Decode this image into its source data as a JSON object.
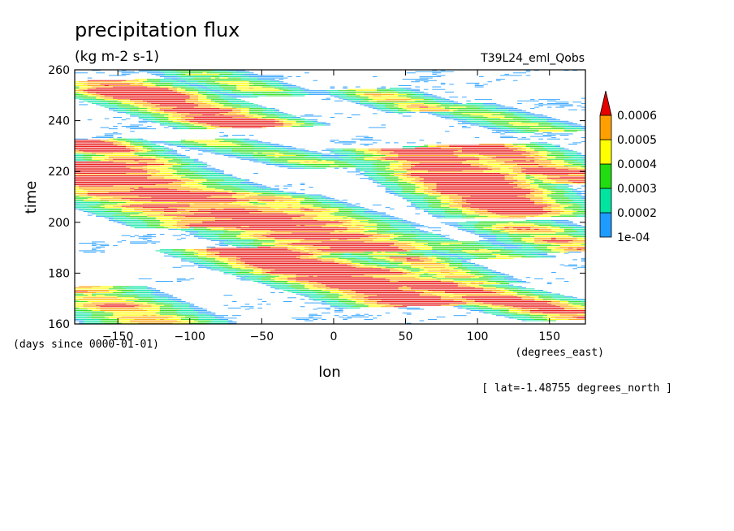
{
  "header": {
    "title": "precipitation flux",
    "units": "(kg m-2 s-1)",
    "experiment": "T39L24_eml_Qobs"
  },
  "footer": {
    "xunit": "(degrees_east)",
    "yunit": "(days since 0000-01-01)",
    "lat_note": "[ lat=-1.48755 degrees_north ]"
  },
  "chart_data": {
    "type": "heatmap",
    "title": "precipitation flux",
    "units": "(kg m-2 s-1)",
    "xlabel": "lon",
    "ylabel": "time",
    "xunit": "(degrees_east)",
    "yunit": "(days since 0000-01-01)",
    "xlim": [
      -180,
      175
    ],
    "ylim": [
      160,
      260
    ],
    "xticks": [
      -150,
      -100,
      -50,
      0,
      50,
      100,
      150
    ],
    "xtick_labels": [
      "-150",
      "-100",
      "-50",
      "0",
      "50",
      "100",
      "150"
    ],
    "yticks": [
      160,
      180,
      200,
      220,
      240,
      260
    ],
    "ytick_labels": [
      "160",
      "180",
      "200",
      "220",
      "240",
      "260"
    ],
    "colorbar": {
      "levels": [
        0.0001,
        0.0002,
        0.0003,
        0.0004,
        0.0005,
        0.0006
      ],
      "labels": [
        "1e-04",
        "0.0002",
        "0.0003",
        "0.0004",
        "0.0005",
        "0.0006"
      ],
      "colors": [
        "#1e9bff",
        "#00e4a0",
        "#20dc10",
        "#ffff00",
        "#ffa000",
        "#e60000"
      ],
      "extend": "max"
    },
    "bands": [
      {
        "lon0": -180,
        "t0": 222,
        "lon1": 20,
        "t1": 190,
        "w": 4.5,
        "peak": 6
      },
      {
        "lon0": -180,
        "t0": 217,
        "lon1": -80,
        "t1": 199,
        "w": 3.5,
        "peak": 5
      },
      {
        "lon0": -60,
        "t0": 189,
        "lon1": 60,
        "t1": 168,
        "w": 3.5,
        "peak": 6
      },
      {
        "lon0": -20,
        "t0": 185,
        "lon1": 175,
        "t1": 163,
        "w": 3.0,
        "peak": 5
      },
      {
        "lon0": -180,
        "t0": 174,
        "lon1": -120,
        "t1": 160,
        "w": 3.0,
        "peak": 4
      },
      {
        "lon0": -160,
        "t0": 255,
        "lon1": -60,
        "t1": 238,
        "w": 3.0,
        "peak": 6
      },
      {
        "lon0": -175,
        "t0": 232,
        "lon1": -130,
        "t1": 222,
        "w": 2.5,
        "peak": 5
      },
      {
        "lon0": -90,
        "t0": 232,
        "lon1": 0,
        "t1": 222,
        "w": 2.0,
        "peak": 3
      },
      {
        "lon0": -50,
        "t0": 210,
        "lon1": 20,
        "t1": 198,
        "w": 2.5,
        "peak": 4
      },
      {
        "lon0": 60,
        "t0": 228,
        "lon1": 130,
        "t1": 203,
        "w": 3.5,
        "peak": 6
      },
      {
        "lon0": 100,
        "t0": 230,
        "lon1": 175,
        "t1": 216,
        "w": 3.0,
        "peak": 5
      },
      {
        "lon0": 20,
        "t0": 252,
        "lon1": 70,
        "t1": 244,
        "w": 2.0,
        "peak": 4
      },
      {
        "lon0": 120,
        "t0": 200,
        "lon1": 175,
        "t1": 189,
        "w": 2.5,
        "peak": 4
      },
      {
        "lon0": 80,
        "t0": 192,
        "lon1": 120,
        "t1": 186,
        "w": 2.0,
        "peak": 3
      },
      {
        "lon0": 50,
        "t0": 186,
        "lon1": 100,
        "t1": 176,
        "w": 2.0,
        "peak": 4
      },
      {
        "lon0": -30,
        "t0": 200,
        "lon1": 50,
        "t1": 185,
        "w": 2.5,
        "peak": 3
      },
      {
        "lon0": 80,
        "t0": 246,
        "lon1": 150,
        "t1": 236,
        "w": 2.0,
        "peak": 3
      },
      {
        "lon0": -100,
        "t0": 260,
        "lon1": -40,
        "t1": 250,
        "w": 2.0,
        "peak": 3
      }
    ]
  }
}
